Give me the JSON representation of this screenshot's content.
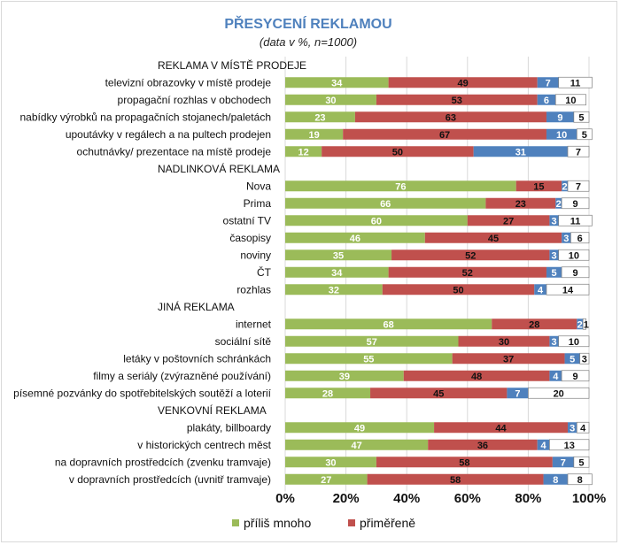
{
  "chart_data": {
    "type": "bar",
    "orientation": "horizontal-stacked-percent",
    "title": "PŘESYCENÍ REKLAMOU",
    "subtitle": "(data v %, n=1000)",
    "xlim": [
      0,
      100
    ],
    "x_ticks": [
      "0%",
      "20%",
      "40%",
      "60%",
      "80%",
      "100%"
    ],
    "colors": {
      "prilis_mnoho": "#9bbb59",
      "primerene": "#c0504d",
      "third": "#4f81bd",
      "fourth": "#ffffff",
      "label_dark": "#111111",
      "label_light": "#ffffff",
      "grid": "#d9d9d9"
    },
    "legend": [
      "příliš mnoho",
      "přiměřeně"
    ],
    "rows": [
      {
        "label": "REKLAMA V MÍSTĚ PRODEJE",
        "header": true
      },
      {
        "label": "televizní obrazovky v místě prodeje",
        "values": [
          34,
          49,
          7,
          11
        ]
      },
      {
        "label": "propagační rozhlas v obchodech",
        "values": [
          30,
          53,
          6,
          10
        ]
      },
      {
        "label": "nabídky výrobků na propagačních stojanech/paletách",
        "values": [
          23,
          63,
          9,
          5
        ]
      },
      {
        "label": "upoutávky v regálech a na pultech prodejen",
        "values": [
          19,
          67,
          10,
          5
        ]
      },
      {
        "label": "ochutnávky/ prezentace na místě prodeje",
        "values": [
          12,
          50,
          31,
          7
        ]
      },
      {
        "label": "NADLINKOVÁ REKLAMA",
        "header": true
      },
      {
        "label": "Nova",
        "values": [
          76,
          15,
          2,
          7
        ]
      },
      {
        "label": "Prima",
        "values": [
          66,
          23,
          2,
          9
        ]
      },
      {
        "label": "ostatní TV",
        "values": [
          60,
          27,
          3,
          11
        ]
      },
      {
        "label": "časopisy",
        "values": [
          46,
          45,
          3,
          6
        ]
      },
      {
        "label": "noviny",
        "values": [
          35,
          52,
          3,
          10
        ]
      },
      {
        "label": "ČT",
        "values": [
          34,
          52,
          5,
          9
        ]
      },
      {
        "label": "rozhlas",
        "values": [
          32,
          50,
          4,
          14
        ]
      },
      {
        "label": "JINÁ REKLAMA",
        "header": true
      },
      {
        "label": "internet",
        "values": [
          68,
          28,
          2,
          1
        ]
      },
      {
        "label": "sociální sítě",
        "values": [
          57,
          30,
          3,
          10
        ]
      },
      {
        "label": "letáky v poštovních schránkách",
        "values": [
          55,
          37,
          5,
          3
        ]
      },
      {
        "label": "filmy a seriály (zvýrazněné používání)",
        "values": [
          39,
          48,
          4,
          9
        ]
      },
      {
        "label": "písemné pozvánky do spotřebitelských soutěží a loterií",
        "values": [
          28,
          45,
          7,
          20
        ]
      },
      {
        "label": "VENKOVNÍ REKLAMA",
        "header": true
      },
      {
        "label": "plakáty, billboardy",
        "values": [
          49,
          44,
          3,
          4
        ]
      },
      {
        "label": "v historických centrech měst",
        "values": [
          47,
          36,
          4,
          13
        ]
      },
      {
        "label": "na dopravních prostředcích (zvenku tramvaje)",
        "values": [
          30,
          58,
          7,
          5
        ]
      },
      {
        "label": "v dopravních prostředcích (uvnitř tramvaje)",
        "values": [
          27,
          58,
          8,
          8
        ]
      }
    ]
  }
}
